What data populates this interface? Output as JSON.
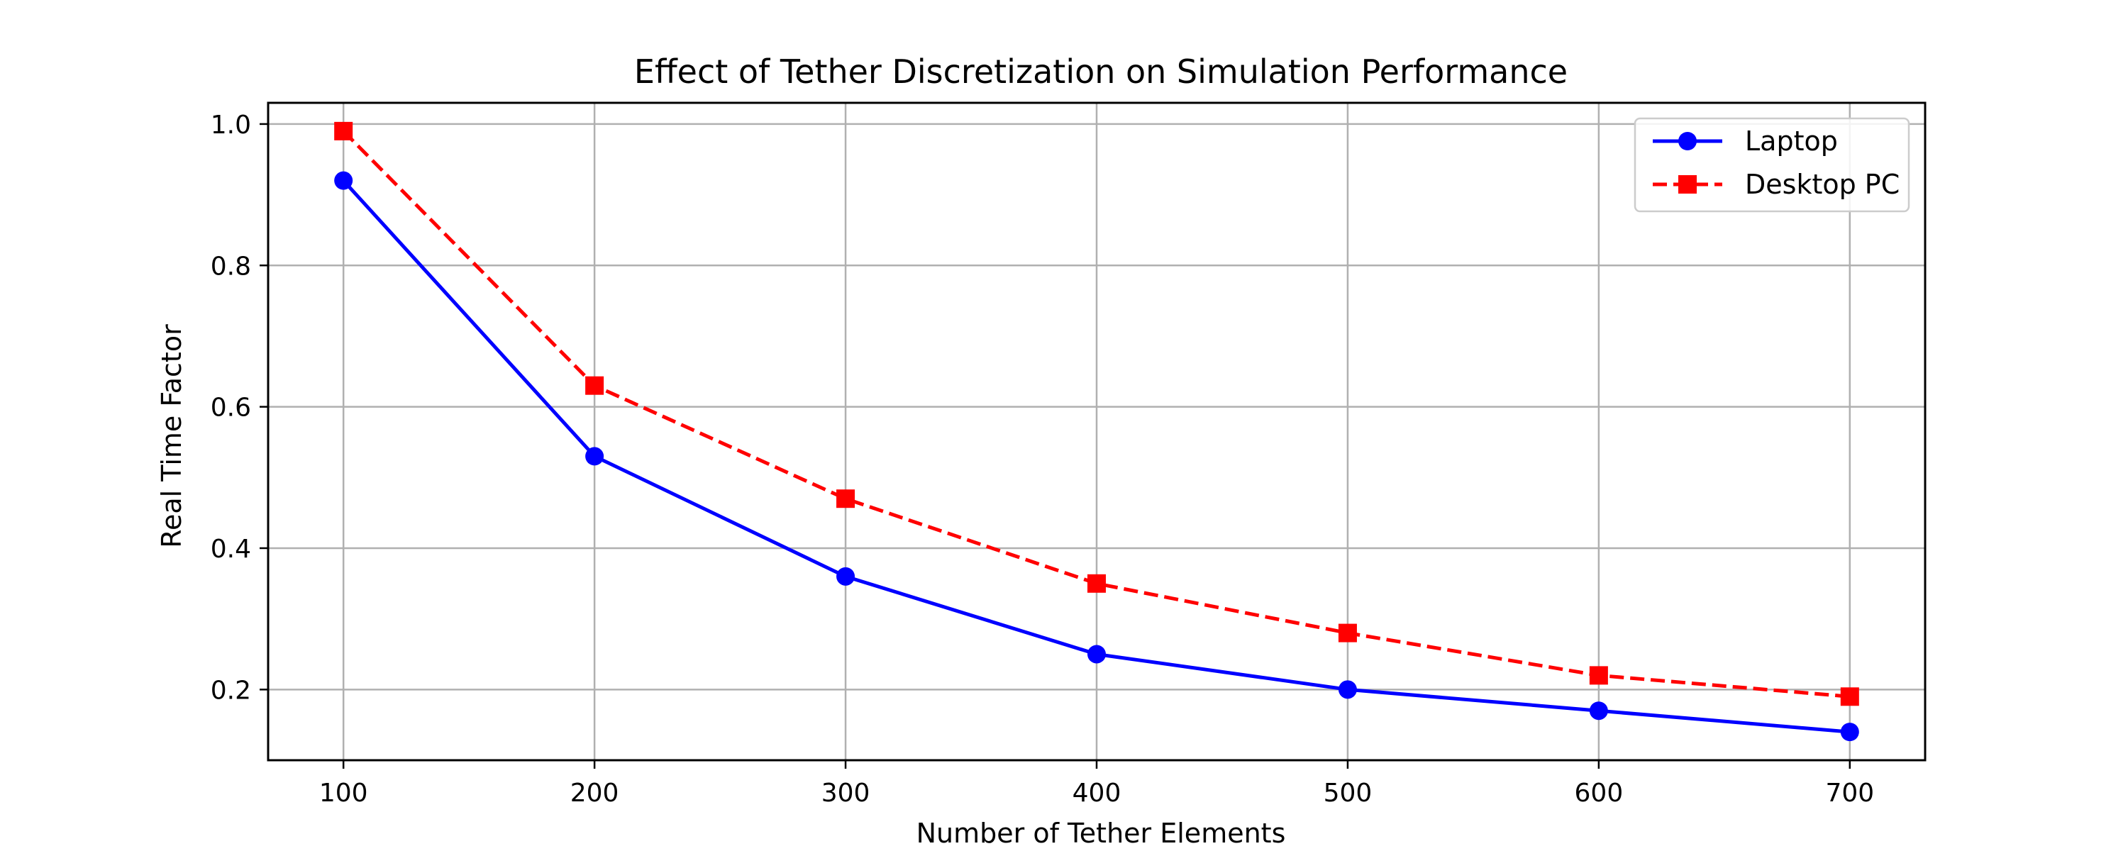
{
  "chart_data": {
    "type": "line",
    "title": "Effect of Tether Discretization on Simulation Performance",
    "xlabel": "Number of Tether Elements",
    "ylabel": "Real Time Factor",
    "x": [
      100,
      200,
      300,
      400,
      500,
      600,
      700
    ],
    "xlim": [
      70,
      730
    ],
    "ylim": [
      0.1,
      1.03
    ],
    "xticks": [
      100,
      200,
      300,
      400,
      500,
      600,
      700
    ],
    "yticks": [
      0.2,
      0.4,
      0.6,
      0.8,
      1.0
    ],
    "grid": true,
    "legend_position": "top-right",
    "series": [
      {
        "name": "Laptop",
        "values": [
          0.92,
          0.53,
          0.36,
          0.25,
          0.2,
          0.17,
          0.14
        ],
        "color": "#0000ff",
        "linestyle": "solid",
        "marker": "circle"
      },
      {
        "name": "Desktop PC",
        "values": [
          0.99,
          0.63,
          0.47,
          0.35,
          0.28,
          0.22,
          0.19
        ],
        "color": "#ff0000",
        "linestyle": "dashed",
        "marker": "square"
      }
    ]
  }
}
